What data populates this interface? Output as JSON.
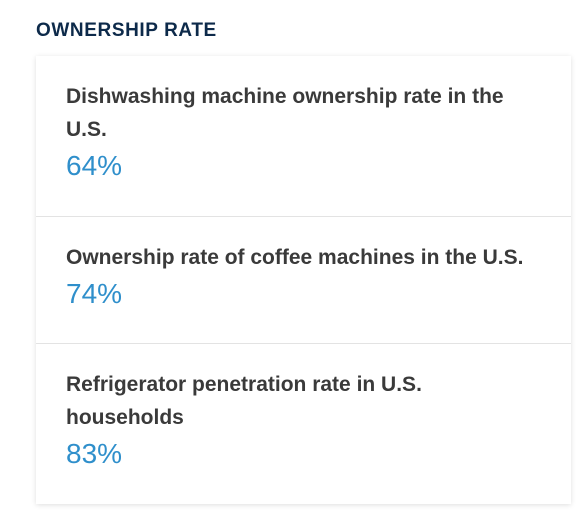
{
  "section": {
    "title": "OWNERSHIP RATE"
  },
  "stats": [
    {
      "label": "Dishwashing machine ownership rate in the U.S.",
      "value": "64%"
    },
    {
      "label": "Ownership rate of coffee machines in the U.S.",
      "value": "74%"
    },
    {
      "label": "Refrigerator penetration rate in U.S. households",
      "value": "83%"
    }
  ],
  "colors": {
    "title": "#0d2a4a",
    "label": "#3a3a3a",
    "value": "#2f8fcb",
    "divider": "#e3e3e3"
  }
}
